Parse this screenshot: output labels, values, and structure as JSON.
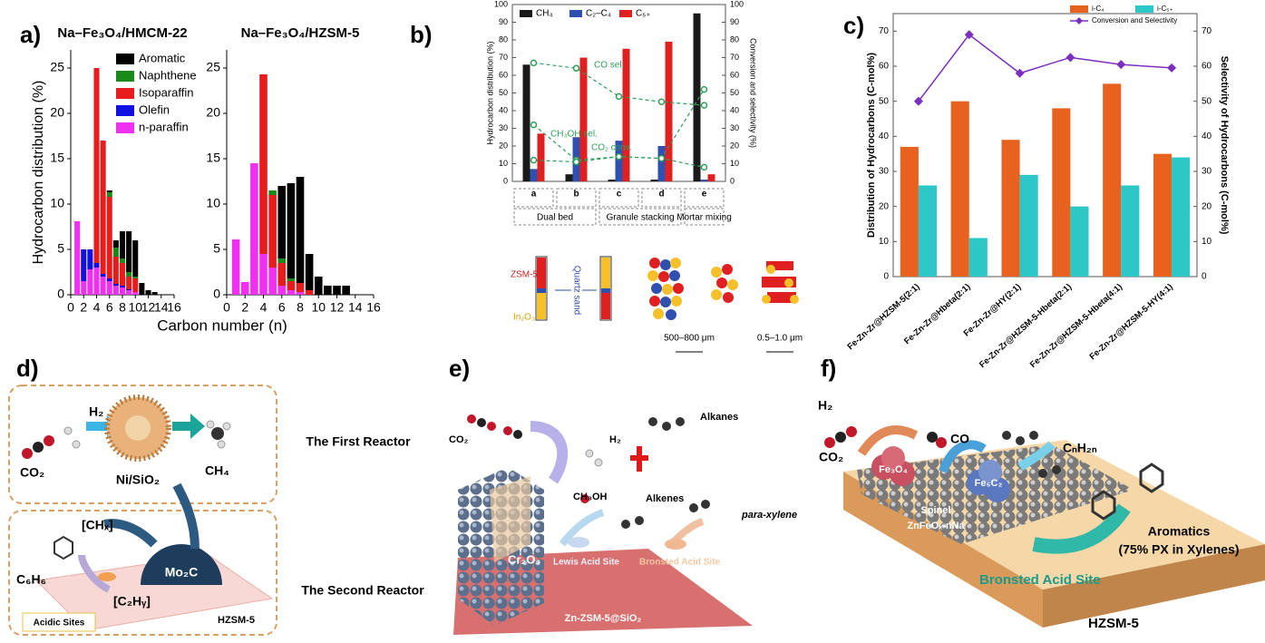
{
  "panels": [
    "a)",
    "b)",
    "c)",
    "d)",
    "e)",
    "f)"
  ],
  "chart_data": [
    {
      "type": "stacked-bar",
      "title": "Na–Fe₃O₄/HMCM-22",
      "ylabel": "Hydrocarbon distribution (%)",
      "xlabel": "Carbon number (n)",
      "legend": "upper right",
      "x": [
        1,
        2,
        3,
        4,
        5,
        6,
        7,
        8,
        9,
        10,
        11,
        12,
        13
      ],
      "xlim": [
        0,
        16
      ],
      "xticks": [
        0,
        2,
        4,
        6,
        8,
        10,
        12,
        14,
        16
      ],
      "ylim": [
        0,
        27
      ],
      "yticks": [
        0,
        5,
        10,
        15,
        20,
        25
      ],
      "series": [
        {
          "name": "Aromatic",
          "color": "#000000",
          "values": [
            0,
            0,
            0,
            0,
            0,
            0.2,
            0.8,
            3,
            4.5,
            4,
            1.3,
            0.5,
            0.3
          ]
        },
        {
          "name": "Naphthene",
          "color": "#1a8a1a",
          "values": [
            0,
            0,
            0,
            0,
            0,
            0.5,
            1,
            0.5,
            0.5,
            0.2,
            0,
            0,
            0
          ]
        },
        {
          "name": "Isoparaffin",
          "color": "#e81c1c",
          "values": [
            0,
            0,
            0,
            21.5,
            14.7,
            9,
            3,
            2.5,
            1.4,
            1.5,
            0,
            0,
            0
          ]
        },
        {
          "name": "Olefin",
          "color": "#1010e0",
          "values": [
            0,
            3.5,
            2.2,
            0.5,
            0.3,
            0.3,
            0.2,
            0.2,
            0.1,
            0,
            0,
            0,
            0
          ]
        },
        {
          "name": "n-paraffin",
          "color": "#f030f0",
          "values": [
            8.1,
            1.5,
            2.8,
            3,
            2,
            1.5,
            1,
            0.8,
            0.5,
            0.3,
            0,
            0,
            0
          ]
        }
      ]
    },
    {
      "type": "stacked-bar",
      "title": "Na–Fe₃O₄/HZSM-5",
      "x": [
        1,
        2,
        3,
        4,
        5,
        6,
        7,
        8,
        9,
        10,
        11,
        12,
        13
      ],
      "xlim": [
        0,
        16
      ],
      "xticks": [
        0,
        2,
        4,
        6,
        8,
        10,
        12,
        14,
        16
      ],
      "ylim": [
        0,
        27
      ],
      "yticks": [
        0,
        5,
        10,
        15,
        20,
        25
      ],
      "series": [
        {
          "color": "#000000",
          "values": [
            0,
            0,
            0,
            0,
            0,
            8,
            10.5,
            11.7,
            4,
            2,
            1,
            1,
            1
          ]
        },
        {
          "color": "#1a8a1a",
          "values": [
            0,
            0,
            0,
            0,
            0.5,
            0.5,
            0.3,
            0,
            0,
            0,
            0,
            0,
            0
          ]
        },
        {
          "color": "#e81c1c",
          "values": [
            0,
            0,
            0,
            19.8,
            8,
            2.5,
            1,
            1,
            0.5,
            0,
            0,
            0,
            0
          ]
        },
        {
          "color": "#1010e0",
          "values": [
            0,
            0,
            0,
            0,
            0,
            0,
            0,
            0,
            0,
            0,
            0,
            0,
            0
          ]
        },
        {
          "color": "#f030f0",
          "values": [
            6.1,
            1.4,
            14.5,
            4.5,
            3,
            1,
            0.5,
            0.3,
            0,
            0,
            0,
            0,
            0
          ]
        }
      ]
    },
    {
      "type": "bar",
      "ylabel": "Hydrocarbon distribution (%)",
      "y2label": "Conversion and selectivity (%)",
      "legend": "upper left",
      "categories": [
        "a",
        "b",
        "c",
        "d",
        "e"
      ],
      "group_labels": [
        "Dual bed",
        "Granule stacking",
        "Mortar mixing"
      ],
      "ylim": [
        0,
        100
      ],
      "yticks": [
        0,
        10,
        20,
        30,
        40,
        50,
        60,
        70,
        80,
        90,
        100
      ],
      "y2lim": [
        0,
        100
      ],
      "y2ticks": [
        0,
        10,
        20,
        30,
        40,
        50,
        60,
        70,
        80,
        90,
        100
      ],
      "series": [
        {
          "name": "CH₄",
          "color": "#1a1a1a",
          "values": [
            66,
            4,
            1,
            1,
            95
          ]
        },
        {
          "name": "C₂–C₄",
          "color": "#3050b0",
          "values": [
            7,
            25,
            23,
            20,
            1
          ]
        },
        {
          "name": "C₅₊",
          "color": "#e02020",
          "values": [
            27,
            70,
            75,
            79,
            4
          ]
        },
        {
          "name": "CO sel.",
          "type": "line",
          "axis": "y2",
          "color": "#2e9e5a",
          "values": [
            67,
            64,
            48,
            45,
            43
          ]
        },
        {
          "name": "CH₃OH sel.",
          "type": "line",
          "axis": "y2",
          "color": "#2e9e5a",
          "values": [
            32,
            12,
            14,
            13,
            52
          ]
        },
        {
          "name": "CO₂ conv.",
          "type": "line",
          "axis": "y2",
          "color": "#2e9e5a",
          "values": [
            12,
            11,
            14,
            13,
            8
          ]
        }
      ]
    },
    {
      "type": "bar",
      "ylabel": "Distribution of Hydrocarbons (C-mol%)",
      "y2label": "Selectivity of Hydrocarbons (C-mol%)",
      "legend": "upper right",
      "categories": [
        "Fe-Zn-Zr@HZSM-5(2:1)",
        "Fe-Zn-Zr@Hbeta(2:1)",
        "Fe-Zn-Zr@HY(2:1)",
        "Fe-Zn-Zr@HZSM-5-Hbeta(2:1)",
        "Fe-Zn-Zr@HZSM-5-Hbeta(4:1)",
        "Fe-Zn-Zr@HZSM-5-HY(4:1)"
      ],
      "ylim": [
        0,
        75
      ],
      "yticks": [
        0,
        10,
        20,
        30,
        40,
        50,
        60,
        70
      ],
      "y2lim": [
        0,
        75
      ],
      "y2ticks": [
        0,
        10,
        20,
        30,
        40,
        50,
        60,
        70
      ],
      "series": [
        {
          "name": "i-C₄",
          "color": "#e8621f",
          "values": [
            37,
            50,
            39,
            48,
            55,
            35
          ]
        },
        {
          "name": "i-C₅₊",
          "color": "#2cc7c7",
          "values": [
            26,
            11,
            29,
            20,
            26,
            34
          ]
        },
        {
          "name": "Conversion and Selectivity",
          "type": "line",
          "axis": "y2",
          "color": "#7b2fbf",
          "values": [
            50,
            69,
            58,
            62.5,
            60.5,
            59.5
          ]
        }
      ]
    }
  ],
  "schemes": {
    "b": [
      "ZSM-5",
      "In₂O₃",
      "Quartz sand",
      "500–800 μm",
      "0.5–1.0 μm"
    ],
    "d": [
      "H₂",
      "CO₂",
      "Ni/SiO₂",
      "CH₄",
      "The First Reactor",
      "[CHₓ]",
      "C₆H₆",
      "Mo₂C",
      "[C₂Hᵧ]",
      "HZSM-5",
      "Acidic Sites",
      "The Second Reactor"
    ],
    "e": [
      "CO₂",
      "H₂",
      "Alkanes",
      "CH₃OH",
      "Alkenes",
      "para-xylene",
      "Cr₂O₃",
      "Lewis Acid Site",
      "Bronsted Acid Site",
      "Zn-ZSM-5@SiO₂"
    ],
    "f": [
      "H₂",
      "CO₂",
      "CO",
      "CₙH₂ₙ",
      "Fe₃O₄",
      "Fe₅C₂",
      "Spinel",
      "ZnFeOₓ-nNa",
      "Aromatics",
      "(75% PX in Xylenes)",
      "Bronsted Acid Site",
      "HZSM-5"
    ]
  }
}
